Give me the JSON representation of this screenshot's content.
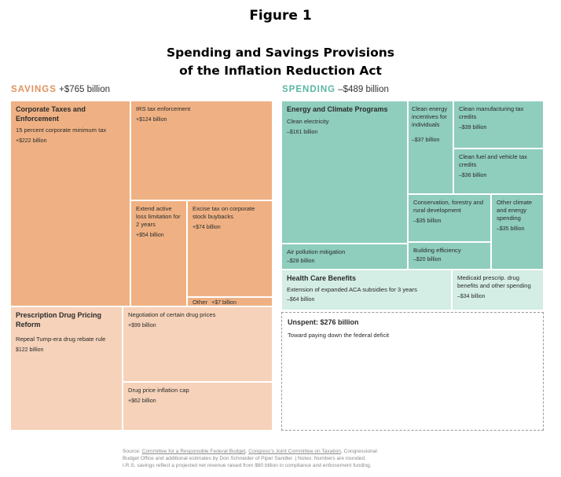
{
  "figure_label": "Figure 1",
  "title_line1": "Spending and Savings Provisions",
  "title_line2": "of the Inflation Reduction Act",
  "savings": {
    "label": "SAVINGS",
    "total": "+$765 billion"
  },
  "spending": {
    "label": "SPENDING",
    "total": "–$489 billion"
  },
  "colors": {
    "savings_dark": "#efb183",
    "savings_light": "#f5d2b9",
    "spending_dark": "#8fcdbc",
    "spending_light": "#d4ede5",
    "savings_text": "#e0925e",
    "spending_text": "#5bb6a2",
    "tile_border": "#ffffff",
    "unspent_border": "#9a9a9a"
  },
  "chart_data": {
    "type": "treemap",
    "units": "billion dollars",
    "groups": [
      {
        "name": "SAVINGS",
        "total": 765,
        "categories": [
          {
            "name": "Corporate Taxes and Enforcement",
            "items": [
              {
                "name": "15 percent corporate minimum tax",
                "value": 222
              },
              {
                "name": "IRS tax enforcement",
                "value": 124
              },
              {
                "name": "Extend active loss limitation for 2 years",
                "value": 54
              },
              {
                "name": "Excise tax on corporate stock buybacks",
                "value": 74
              },
              {
                "name": "Other",
                "value": 7
              }
            ]
          },
          {
            "name": "Prescription Drug Pricing Reform",
            "items": [
              {
                "name": "Repeal Tump-era drug rebate rule",
                "value": 122
              },
              {
                "name": "Negotiation of certain drug prices",
                "value": 99
              },
              {
                "name": "Drug price inflation cap",
                "value": 62
              }
            ]
          }
        ]
      },
      {
        "name": "SPENDING",
        "total": -489,
        "categories": [
          {
            "name": "Energy and Climate Programs",
            "items": [
              {
                "name": "Clean electricity",
                "value": -161
              },
              {
                "name": "Clean energy incentives for individuals",
                "value": -37
              },
              {
                "name": "Clean manufacturing tax credits",
                "value": -39
              },
              {
                "name": "Clean fuel and vehicle tax credits",
                "value": -36
              },
              {
                "name": "Conservation, forestry and rural development",
                "value": -35
              },
              {
                "name": "Other climate and energy spending",
                "value": -35
              },
              {
                "name": "Air pollution mitigation",
                "value": -28
              },
              {
                "name": "Building efficiency",
                "value": -20
              }
            ]
          },
          {
            "name": "Health Care Benefits",
            "items": [
              {
                "name": "Extension of expanded ACA subsidies for 3 years",
                "value": -64
              },
              {
                "name": "Medicaid prescrip. drug benefits and other spending",
                "value": -34
              }
            ]
          }
        ]
      },
      {
        "name": "Unspent",
        "total": 276,
        "categories": [
          {
            "name": "Toward paying down the federal deficit",
            "items": [
              {
                "name": "Unspent",
                "value": 276
              }
            ]
          }
        ]
      }
    ]
  },
  "tiles": {
    "corp": {
      "title": "Corporate Taxes and Enforcement",
      "sub": "15 percent corporate minimum tax",
      "value": "+$222 billion"
    },
    "irs": {
      "title": "IRS tax enforcement",
      "value": "+$124 billion"
    },
    "loss": {
      "title": "Extend active loss limitation for 2 years",
      "value": "+$54 billion"
    },
    "excise": {
      "title": "Excise tax on corporate stock buybacks",
      "value": "+$74 billion"
    },
    "other": {
      "title": "Other",
      "value": "+$7 billion"
    },
    "drug": {
      "title": "Prescription Drug Pricing Reform",
      "sub": "Repeal Tump-era drug rebate rule",
      "value": "$122 billion"
    },
    "nego": {
      "title": "Negotiation of certain drug prices",
      "value": "+$99 billion"
    },
    "infl": {
      "title": "Drug price inflation cap",
      "value": "+$62 billion"
    },
    "energy": {
      "title": "Energy and Climate Programs",
      "sub": "Clean electricity",
      "value": "–$161 billion"
    },
    "indiv": {
      "title": "Clean energy incentives for individuals",
      "value": "–$37 billion"
    },
    "manuf": {
      "title": "Clean manufacturing tax credits",
      "value": "–$39 billion"
    },
    "fuel": {
      "title": "Clean fuel and vehicle tax credits",
      "value": "–$36 billion"
    },
    "cons": {
      "title": "Conservation, forestry and rural development",
      "value": "–$35 billion"
    },
    "oclim": {
      "title": "Other climate and energy spending",
      "value": "–$35 billion"
    },
    "air": {
      "title": "Air pollution mitigation",
      "value": "–$28 billion"
    },
    "bldg": {
      "title": "Building efficiency",
      "value": "–$20 billion"
    },
    "health": {
      "title": "Health Care Benefits",
      "sub": "Extension of expanded ACA subsidies for 3 years",
      "value": "–$64 billion"
    },
    "medic": {
      "title": "Medicaid prescrip. drug benefits and other spending",
      "value": "–$34 billion"
    },
    "unspent": {
      "title": "Unspent: $276 billion",
      "sub": "Toward paying down the federal deficit"
    }
  },
  "source": {
    "prefix": "Source: ",
    "link1": "Committee for a Responsible Federal Budget",
    "sep": ", ",
    "link2": "Congress’s Joint Committee on Taxation",
    "rest1": ", Congressional",
    "line2": "Budget Office and additional estimates by Don Schneider of Piper Sandler. | Notes: Numbers are rounded.",
    "line3": "I.R.S. savings reflect a projected net revenue raised from $80 billion in compliance and enforcement funding."
  }
}
